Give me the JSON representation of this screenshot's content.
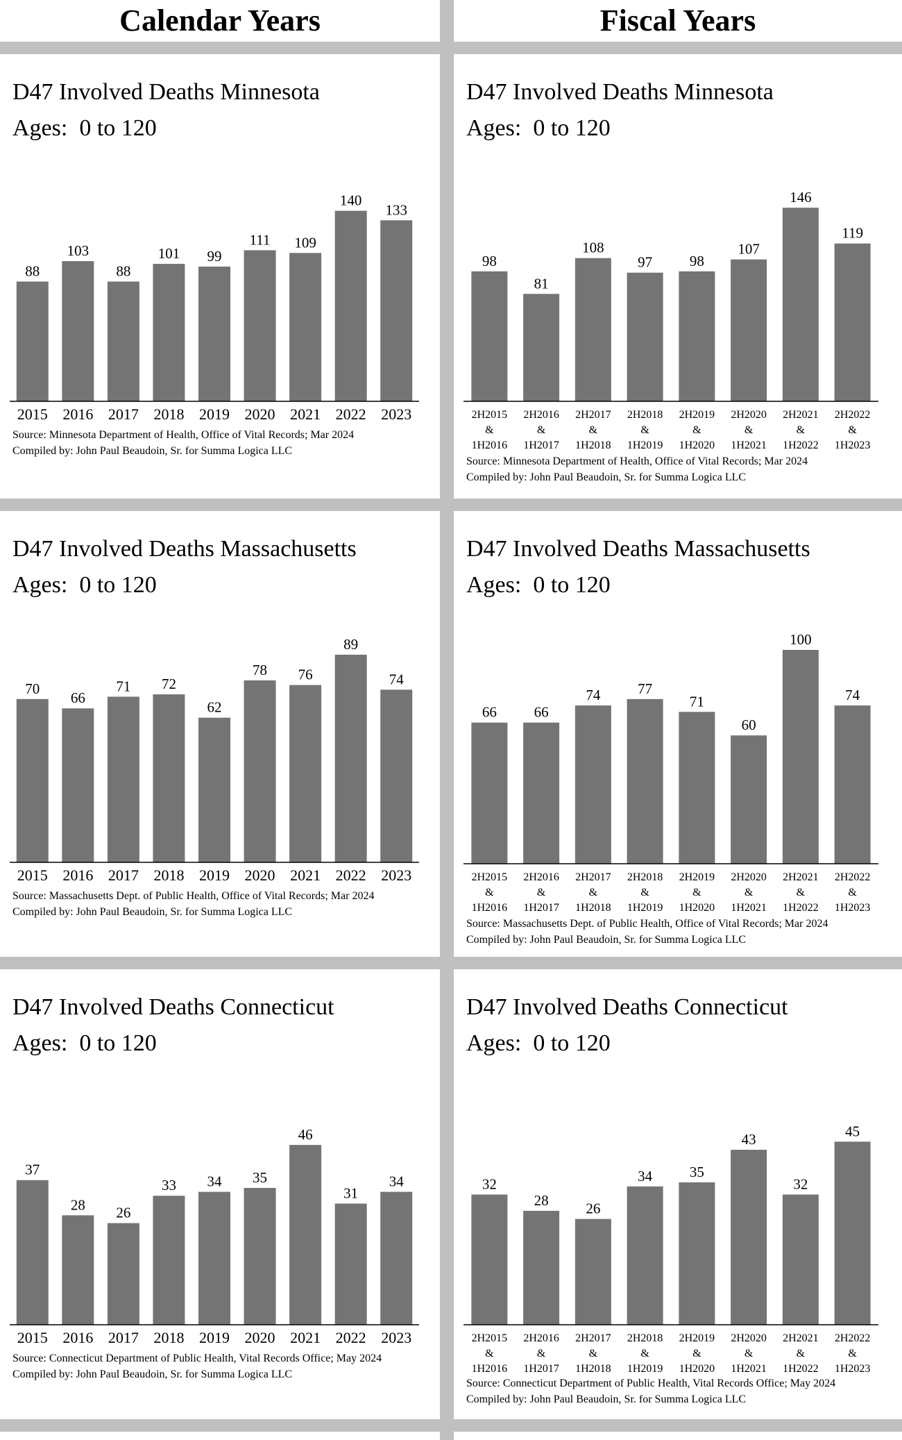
{
  "headers": {
    "left": "Calendar Years",
    "right": "Fiscal Years"
  },
  "colors": {
    "bar": "#747474",
    "separator": "#c0c0c0"
  },
  "chart_data": [
    {
      "id": "mn-cal",
      "type": "bar",
      "title": "D47 Involved Deaths Minnesota",
      "subtitle": "Ages:  0 to 120",
      "categories": [
        "2015",
        "2016",
        "2017",
        "2018",
        "2019",
        "2020",
        "2021",
        "2022",
        "2023"
      ],
      "values": [
        88,
        103,
        88,
        101,
        99,
        111,
        109,
        140,
        133
      ],
      "source": "Source:  Minnesota Department of Health, Office of Vital Records; Mar 2024",
      "compiled": "Compiled by:  John Paul Beaudoin, Sr. for Summa Logica LLC"
    },
    {
      "id": "mn-fis",
      "type": "bar",
      "title": "D47 Involved Deaths Minnesota",
      "subtitle": "Ages:  0 to 120",
      "categories": [
        "2H2015 & 1H2016",
        "2H2016 & 1H2017",
        "2H2017 & 1H2018",
        "2H2018 & 1H2019",
        "2H2019 & 1H2020",
        "2H2020 & 1H2021",
        "2H2021 & 1H2022",
        "2H2022 & 1H2023"
      ],
      "values": [
        98,
        81,
        108,
        97,
        98,
        107,
        146,
        119
      ],
      "source": "Source:  Minnesota Department of Health, Office of Vital Records; Mar 2024",
      "compiled": "Compiled by:  John Paul Beaudoin, Sr. for Summa Logica LLC"
    },
    {
      "id": "ma-cal",
      "type": "bar",
      "title": "D47 Involved Deaths Massachusetts",
      "subtitle": "Ages:  0 to 120",
      "categories": [
        "2015",
        "2016",
        "2017",
        "2018",
        "2019",
        "2020",
        "2021",
        "2022",
        "2023"
      ],
      "values": [
        70,
        66,
        71,
        72,
        62,
        78,
        76,
        89,
        74
      ],
      "source": "Source:  Massachusetts Dept. of Public Health, Office of Vital Records; Mar 2024",
      "compiled": "Compiled by:  John Paul Beaudoin, Sr. for Summa Logica LLC"
    },
    {
      "id": "ma-fis",
      "type": "bar",
      "title": "D47 Involved Deaths Massachusetts",
      "subtitle": "Ages:  0 to 120",
      "categories": [
        "2H2015 & 1H2016",
        "2H2016 & 1H2017",
        "2H2017 & 1H2018",
        "2H2018 & 1H2019",
        "2H2019 & 1H2020",
        "2H2020 & 1H2021",
        "2H2021 & 1H2022",
        "2H2022 & 1H2023"
      ],
      "values": [
        66,
        66,
        74,
        77,
        71,
        60,
        100,
        74
      ],
      "source": "Source:  Massachusetts Dept. of Public Health, Office of Vital Records; Mar 2024",
      "compiled": "Compiled by:  John Paul Beaudoin, Sr. for Summa Logica LLC"
    },
    {
      "id": "ct-cal",
      "type": "bar",
      "title": "D47 Involved Deaths Connecticut",
      "subtitle": "Ages:  0 to 120",
      "categories": [
        "2015",
        "2016",
        "2017",
        "2018",
        "2019",
        "2020",
        "2021",
        "2022",
        "2023"
      ],
      "values": [
        37,
        28,
        26,
        33,
        34,
        35,
        46,
        31,
        34
      ],
      "source": "Source:  Connecticut Department of Public Health, Vital Records Office; May 2024",
      "compiled": "Compiled by:  John Paul Beaudoin, Sr. for Summa Logica LLC"
    },
    {
      "id": "ct-fis",
      "type": "bar",
      "title": "D47 Involved Deaths Connecticut",
      "subtitle": "Ages:  0 to 120",
      "categories": [
        "2H2015 & 1H2016",
        "2H2016 & 1H2017",
        "2H2017 & 1H2018",
        "2H2018 & 1H2019",
        "2H2019 & 1H2020",
        "2H2020 & 1H2021",
        "2H2021 & 1H2022",
        "2H2022 & 1H2023"
      ],
      "values": [
        32,
        28,
        26,
        34,
        35,
        43,
        32,
        45
      ],
      "source": "Source:  Connecticut Department of Public Health, Vital Records Office; May 2024",
      "compiled": "Compiled by:  John Paul Beaudoin, Sr. for Summa Logica LLC"
    }
  ]
}
